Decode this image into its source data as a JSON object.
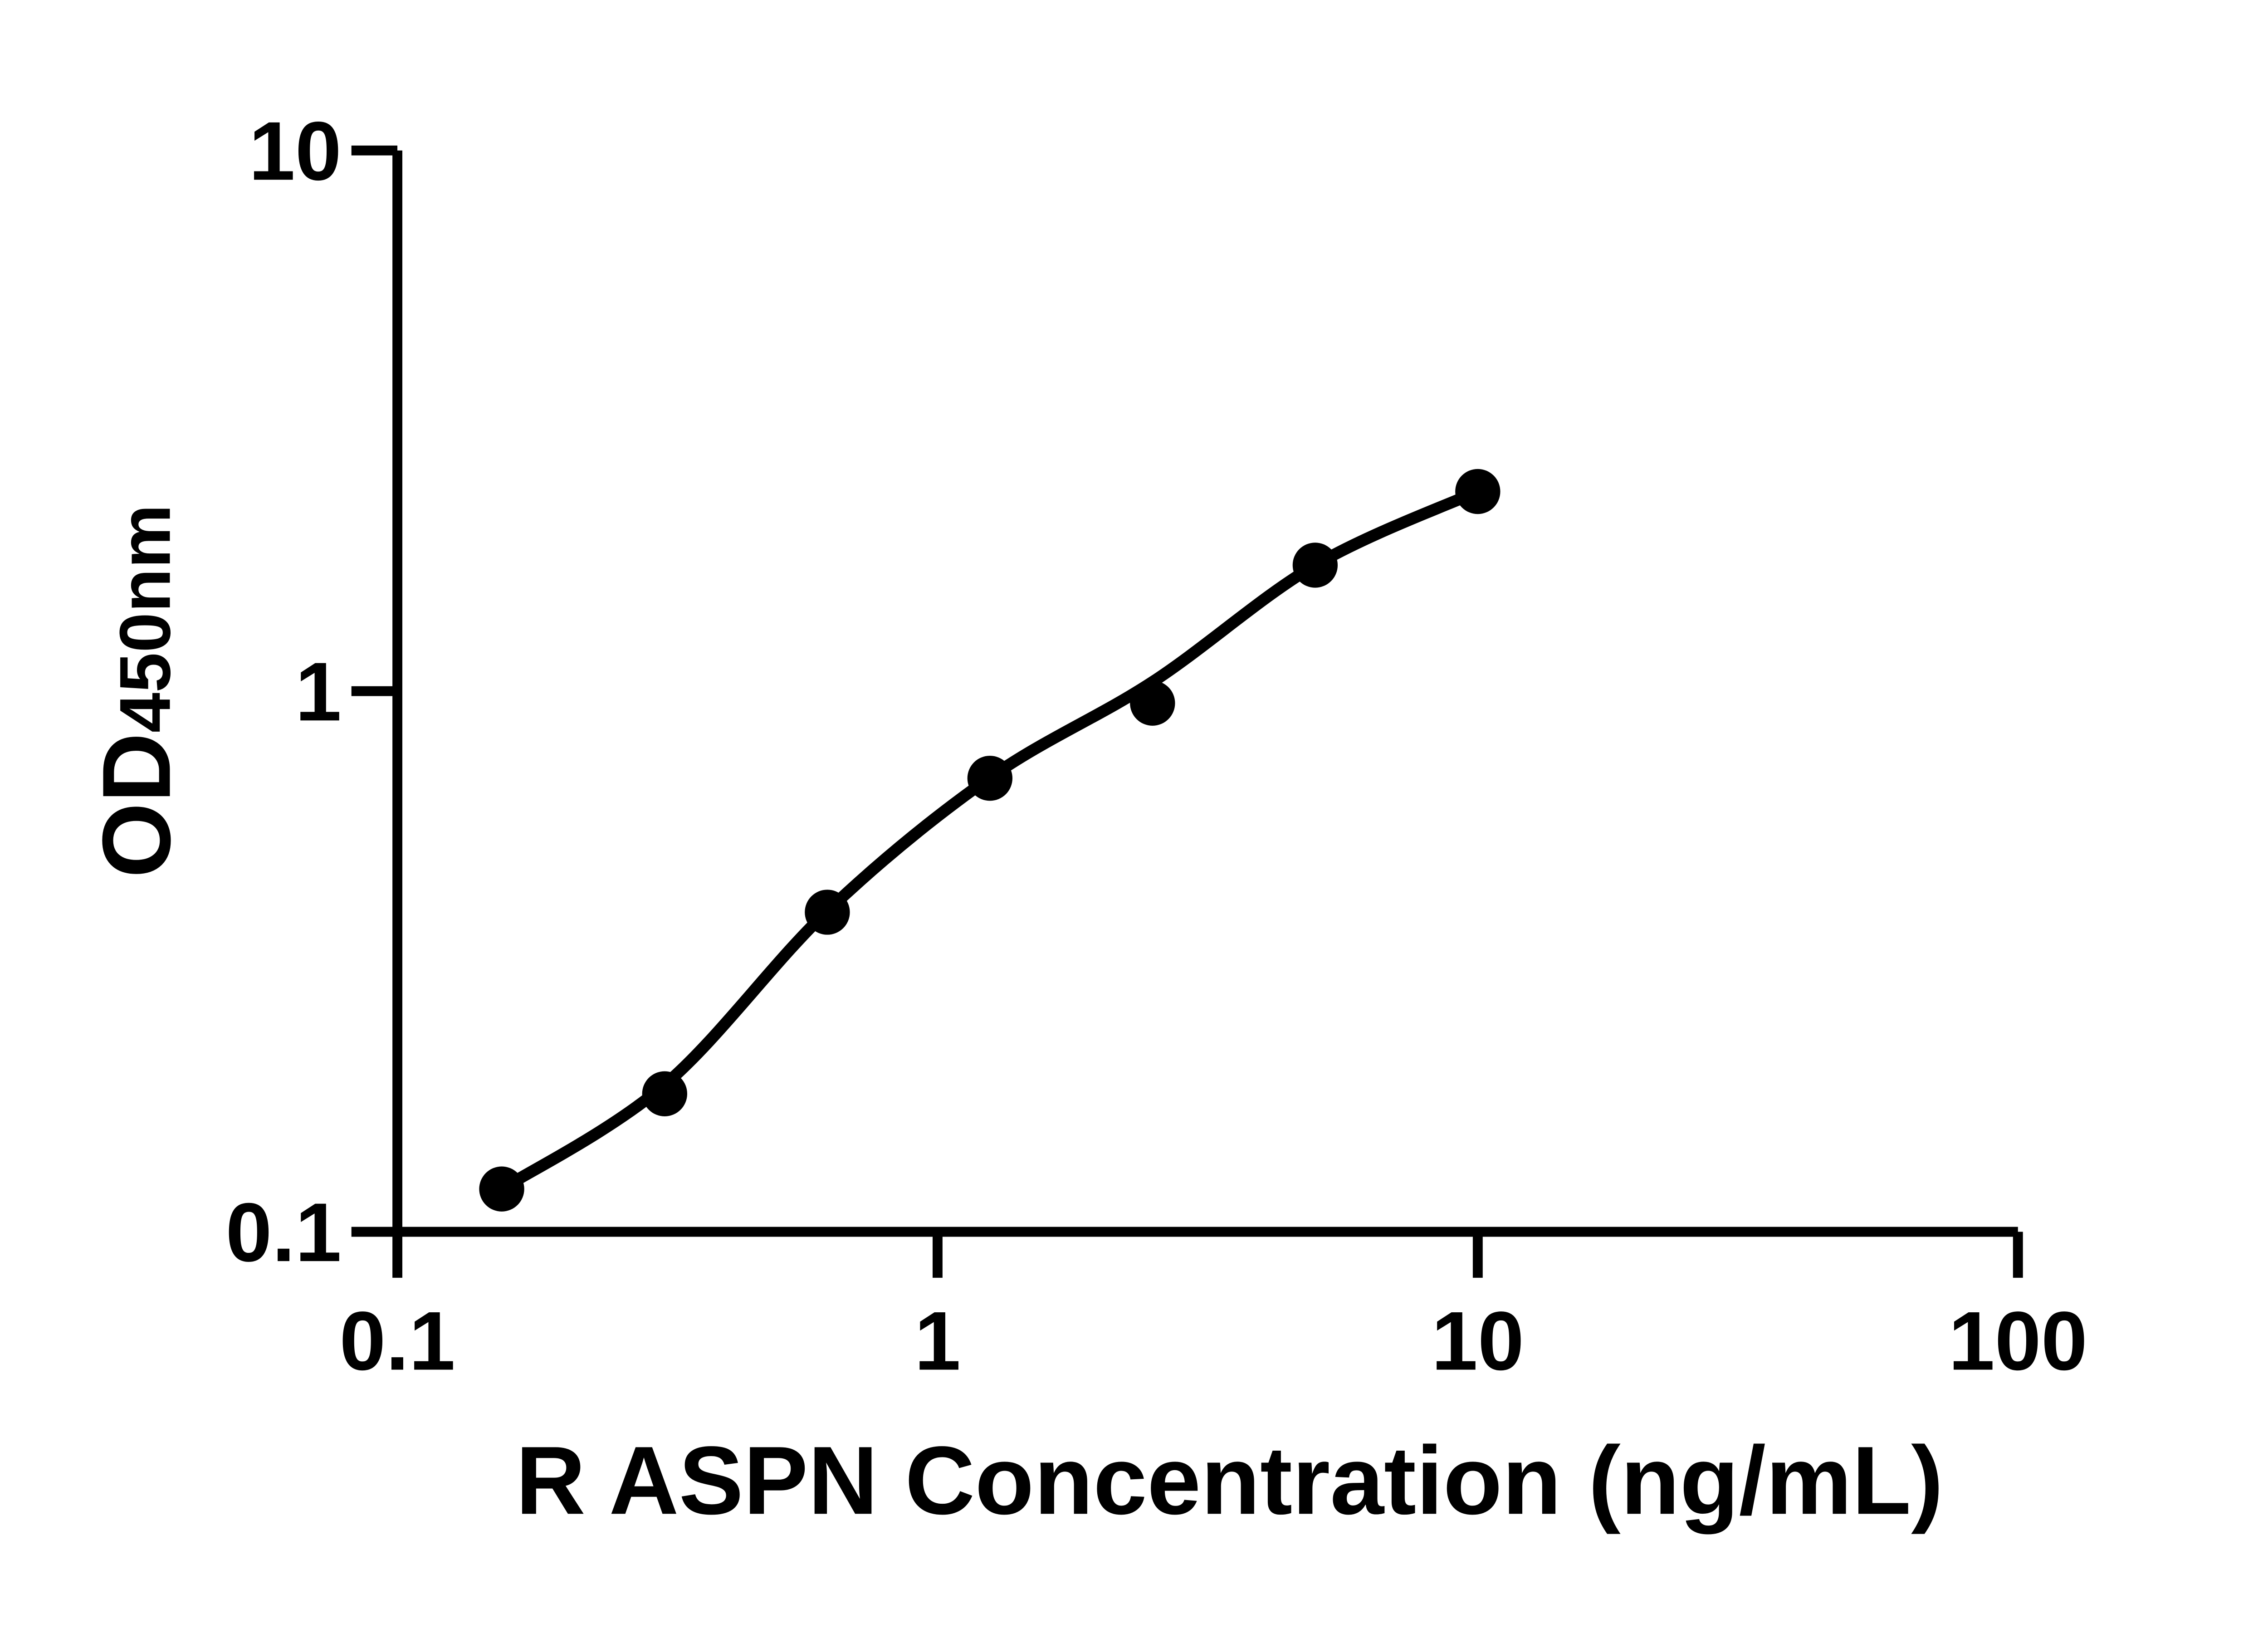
{
  "figure": {
    "background_color": "#ffffff",
    "ink_color": "#000000"
  },
  "chart_data": {
    "type": "scatter",
    "title": "",
    "xlabel": "R ASPN Concentration (ng/mL)",
    "ylabel": "OD",
    "ylabel_subscript": "450nm",
    "x_scale": "log10",
    "y_scale": "log10",
    "xlim": [
      0.1,
      100
    ],
    "ylim": [
      0.1,
      10
    ],
    "x_ticks": [
      0.1,
      1,
      10,
      100
    ],
    "x_tick_labels": [
      "0.1",
      "1",
      "10",
      "100"
    ],
    "y_ticks": [
      0.1,
      1,
      10
    ],
    "y_tick_labels": [
      "0.1",
      "1",
      "10"
    ],
    "grid": false,
    "legend": false,
    "marker": "filled-circle",
    "series": [
      {
        "x": [
          0.156,
          0.3125,
          0.625,
          1.25,
          2.5,
          5,
          10
        ],
        "y": [
          0.12,
          0.18,
          0.39,
          0.69,
          0.95,
          1.71,
          2.34
        ]
      }
    ],
    "fit_curve": {
      "x": [
        0.156,
        0.3125,
        0.625,
        1.25,
        2.5,
        5,
        10
      ],
      "y": [
        0.12,
        0.187,
        0.392,
        0.692,
        1.04,
        1.71,
        2.34
      ]
    }
  }
}
